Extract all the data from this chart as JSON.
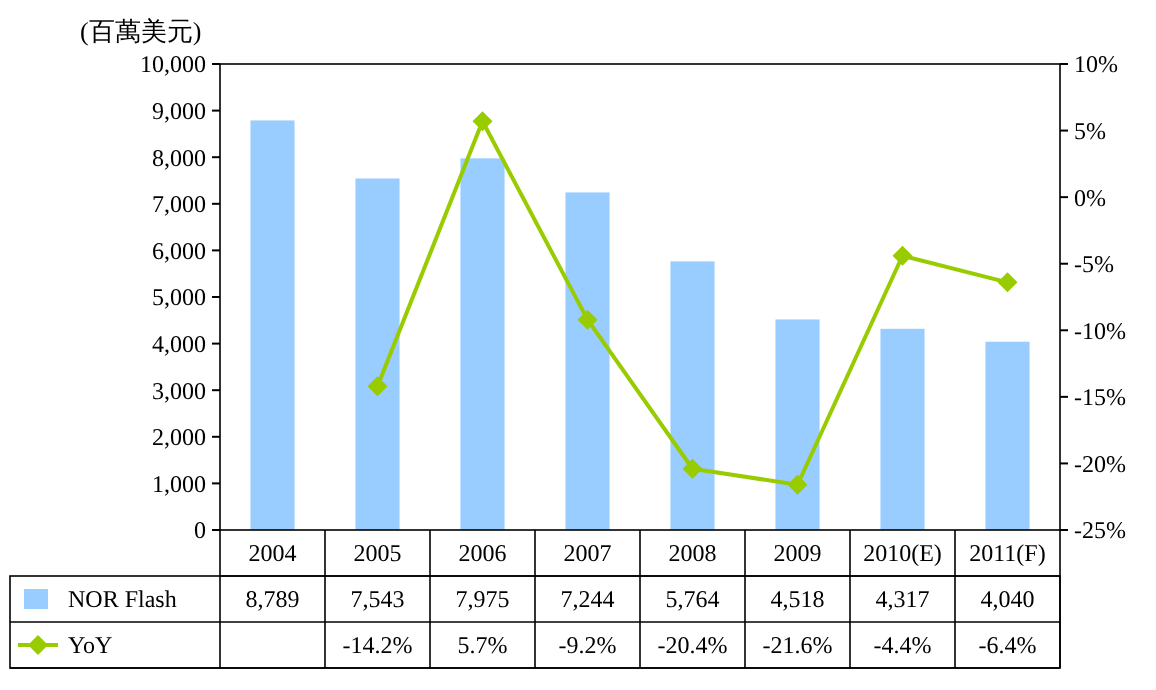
{
  "chart_data": {
    "type": "bar",
    "ylabel": "(百萬美元)",
    "legend": "bottom",
    "categories": [
      "2004",
      "2005",
      "2006",
      "2007",
      "2008",
      "2009",
      "2010(E)",
      "2011(F)"
    ],
    "series": [
      {
        "name": "NOR Flash",
        "color": "#99ccff",
        "values": [
          8789,
          7543,
          7975,
          7244,
          5764,
          4518,
          4317,
          4040
        ],
        "value_labels": [
          "8,789",
          "7,543",
          "7,975",
          "7,244",
          "5,764",
          "4,518",
          "4,317",
          "4,040"
        ]
      },
      {
        "name": "YoY",
        "type": "line",
        "axis": "y2",
        "color": "#99cc00",
        "marker": "diamond",
        "values": [
          null,
          -14.2,
          5.7,
          -9.2,
          -20.4,
          -21.6,
          -4.4,
          -6.4
        ],
        "value_labels": [
          null,
          "-14.2%",
          "5.7%",
          "-9.2%",
          "-20.4%",
          "-21.6%",
          "-4.4%",
          "-6.4%"
        ]
      }
    ],
    "ylim": [
      0,
      10000
    ],
    "yticks": [
      {
        "value": 0,
        "label": "0"
      },
      {
        "value": 1000,
        "label": "1,000"
      },
      {
        "value": 2000,
        "label": "2,000"
      },
      {
        "value": 3000,
        "label": "3,000"
      },
      {
        "value": 4000,
        "label": "4,000"
      },
      {
        "value": 5000,
        "label": "5,000"
      },
      {
        "value": 6000,
        "label": "6,000"
      },
      {
        "value": 7000,
        "label": "7,000"
      },
      {
        "value": 8000,
        "label": "8,000"
      },
      {
        "value": 9000,
        "label": "9,000"
      },
      {
        "value": 10000,
        "label": "10,000"
      }
    ],
    "y2lim": [
      -25,
      10
    ],
    "y2ticks": [
      {
        "value": -25,
        "label": "-25%"
      },
      {
        "value": -20,
        "label": "-20%"
      },
      {
        "value": -15,
        "label": "-15%"
      },
      {
        "value": -10,
        "label": "-10%"
      },
      {
        "value": -5,
        "label": "-5%"
      },
      {
        "value": 0,
        "label": "0%"
      },
      {
        "value": 5,
        "label": "5%"
      },
      {
        "value": 10,
        "label": "10%"
      }
    ]
  }
}
